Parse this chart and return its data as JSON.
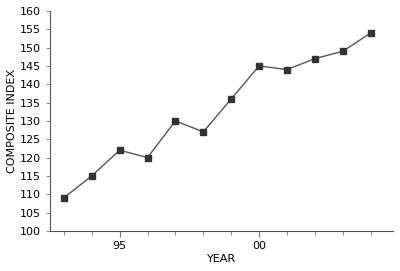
{
  "years": [
    1993,
    1994,
    1995,
    1996,
    1997,
    1998,
    1999,
    2000,
    2001,
    2002,
    2003,
    2004
  ],
  "values": [
    109,
    115,
    122,
    120,
    130,
    127,
    136,
    145,
    144,
    147,
    149,
    154
  ],
  "line_color": "#555555",
  "marker": "s",
  "marker_color": "#333333",
  "marker_size": 4,
  "xlabel": "YEAR",
  "ylabel": "COMPOSITE INDEX",
  "ylim": [
    100,
    160
  ],
  "yticks": [
    100,
    105,
    110,
    115,
    120,
    125,
    130,
    135,
    140,
    145,
    150,
    155,
    160
  ],
  "major_xticks": [
    1995,
    2000
  ],
  "major_xticklabels": [
    "95",
    "00"
  ],
  "all_xticks": [
    1993,
    1994,
    1995,
    1996,
    1997,
    1998,
    1999,
    2000,
    2001,
    2002,
    2003,
    2004
  ],
  "xlim": [
    1992.5,
    2004.8
  ],
  "background_color": "#ffffff",
  "label_fontsize": 8,
  "tick_fontsize": 8
}
